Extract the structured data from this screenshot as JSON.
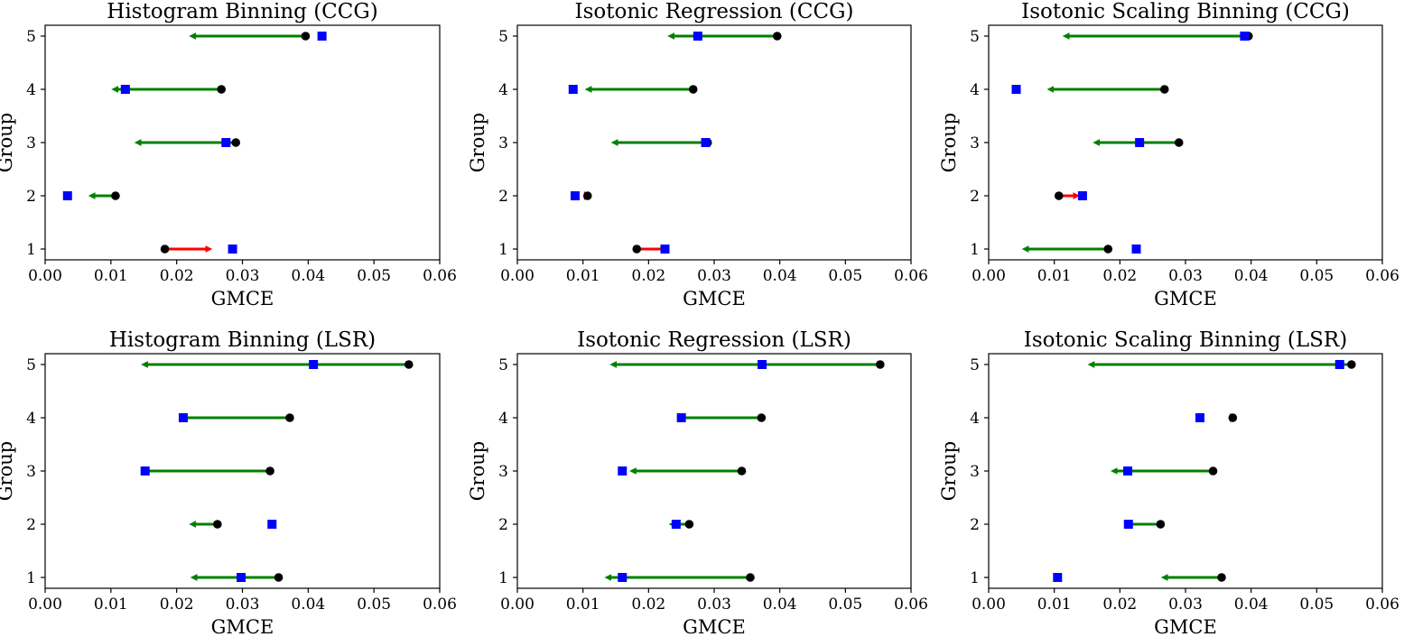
{
  "colors": {
    "improve_arrow": "#008000",
    "worsen_arrow": "#ff0000",
    "start_marker": "#000000",
    "target_marker": "#0000ff"
  },
  "chart_data": [
    {
      "type": "scatter",
      "title": "Histogram Binning (CCG)",
      "xlabel": "GMCE",
      "ylabel": "Group",
      "xlim": [
        0,
        0.06
      ],
      "xticks": [
        "0.00",
        "0.01",
        "0.02",
        "0.03",
        "0.04",
        "0.05",
        "0.06"
      ],
      "yticks": [
        "1",
        "2",
        "3",
        "4",
        "5"
      ],
      "grid": false,
      "groups": [
        {
          "group": 1,
          "start": 0.0182,
          "end": 0.0255,
          "square": 0.0285
        },
        {
          "group": 2,
          "start": 0.0107,
          "end": 0.0065,
          "square": 0.0034
        },
        {
          "group": 3,
          "start": 0.029,
          "end": 0.0135,
          "square": 0.0275
        },
        {
          "group": 4,
          "start": 0.0268,
          "end": 0.01,
          "square": 0.0122
        },
        {
          "group": 5,
          "start": 0.0396,
          "end": 0.0218,
          "square": 0.0421
        }
      ]
    },
    {
      "type": "scatter",
      "title": "Isotonic Regression (CCG)",
      "xlabel": "GMCE",
      "ylabel": "Group",
      "xlim": [
        0,
        0.06
      ],
      "xticks": [
        "0.00",
        "0.01",
        "0.02",
        "0.03",
        "0.04",
        "0.05",
        "0.06"
      ],
      "yticks": [
        "1",
        "2",
        "3",
        "4",
        "5"
      ],
      "grid": false,
      "groups": [
        {
          "group": 1,
          "start": 0.0182,
          "end": 0.023,
          "square": 0.0225
        },
        {
          "group": 2,
          "start": 0.0107,
          "end": 0.0112,
          "square": 0.0088
        },
        {
          "group": 3,
          "start": 0.029,
          "end": 0.0142,
          "square": 0.0287
        },
        {
          "group": 4,
          "start": 0.0268,
          "end": 0.0102,
          "square": 0.0085
        },
        {
          "group": 5,
          "start": 0.0396,
          "end": 0.0228,
          "square": 0.0275
        }
      ]
    },
    {
      "type": "scatter",
      "title": "Isotonic Scaling Binning (CCG)",
      "xlabel": "GMCE",
      "ylabel": "Group",
      "xlim": [
        0,
        0.06
      ],
      "xticks": [
        "0.00",
        "0.01",
        "0.02",
        "0.03",
        "0.04",
        "0.05",
        "0.06"
      ],
      "yticks": [
        "1",
        "2",
        "3",
        "4",
        "5"
      ],
      "grid": false,
      "groups": [
        {
          "group": 1,
          "start": 0.0182,
          "end": 0.005,
          "square": 0.0225
        },
        {
          "group": 2,
          "start": 0.0107,
          "end": 0.014,
          "square": 0.0143
        },
        {
          "group": 3,
          "start": 0.029,
          "end": 0.0158,
          "square": 0.023
        },
        {
          "group": 4,
          "start": 0.0268,
          "end": 0.0088,
          "square": 0.0042
        },
        {
          "group": 5,
          "start": 0.0396,
          "end": 0.0112,
          "square": 0.039
        }
      ]
    },
    {
      "type": "scatter",
      "title": "Histogram Binning (LSR)",
      "xlabel": "GMCE",
      "ylabel": "Group",
      "xlim": [
        0,
        0.06
      ],
      "xticks": [
        "0.00",
        "0.01",
        "0.02",
        "0.03",
        "0.04",
        "0.05",
        "0.06"
      ],
      "yticks": [
        "1",
        "2",
        "3",
        "4",
        "5"
      ],
      "grid": false,
      "groups": [
        {
          "group": 1,
          "start": 0.0355,
          "end": 0.022,
          "square": 0.0298
        },
        {
          "group": 2,
          "start": 0.0262,
          "end": 0.0218,
          "square": 0.0345
        },
        {
          "group": 3,
          "start": 0.0342,
          "end": 0.0145,
          "square": 0.0152
        },
        {
          "group": 4,
          "start": 0.0372,
          "end": 0.0205,
          "square": 0.021
        },
        {
          "group": 5,
          "start": 0.0553,
          "end": 0.0145,
          "square": 0.0408
        }
      ]
    },
    {
      "type": "scatter",
      "title": "Isotonic Regression (LSR)",
      "xlabel": "GMCE",
      "ylabel": "Group",
      "xlim": [
        0,
        0.06
      ],
      "xticks": [
        "0.00",
        "0.01",
        "0.02",
        "0.03",
        "0.04",
        "0.05",
        "0.06"
      ],
      "yticks": [
        "1",
        "2",
        "3",
        "4",
        "5"
      ],
      "grid": false,
      "groups": [
        {
          "group": 1,
          "start": 0.0355,
          "end": 0.0132,
          "square": 0.016
        },
        {
          "group": 2,
          "start": 0.0262,
          "end": 0.023,
          "square": 0.0242
        },
        {
          "group": 3,
          "start": 0.0342,
          "end": 0.017,
          "square": 0.016
        },
        {
          "group": 4,
          "start": 0.0372,
          "end": 0.0242,
          "square": 0.025
        },
        {
          "group": 5,
          "start": 0.0553,
          "end": 0.014,
          "square": 0.0373
        }
      ]
    },
    {
      "type": "scatter",
      "title": "Isotonic Scaling Binning (LSR)",
      "xlabel": "GMCE",
      "ylabel": "Group",
      "xlim": [
        0,
        0.06
      ],
      "xticks": [
        "0.00",
        "0.01",
        "0.02",
        "0.03",
        "0.04",
        "0.05",
        "0.06"
      ],
      "yticks": [
        "1",
        "2",
        "3",
        "4",
        "5"
      ],
      "grid": false,
      "groups": [
        {
          "group": 1,
          "start": 0.0355,
          "end": 0.0262,
          "square": 0.0105
        },
        {
          "group": 2,
          "start": 0.0262,
          "end": 0.0205,
          "square": 0.0213
        },
        {
          "group": 3,
          "start": 0.0342,
          "end": 0.0185,
          "square": 0.0212
        },
        {
          "group": 4,
          "start": 0.0372,
          "end": 0.0378,
          "square": 0.0322
        },
        {
          "group": 5,
          "start": 0.0553,
          "end": 0.015,
          "square": 0.0535
        }
      ]
    }
  ]
}
